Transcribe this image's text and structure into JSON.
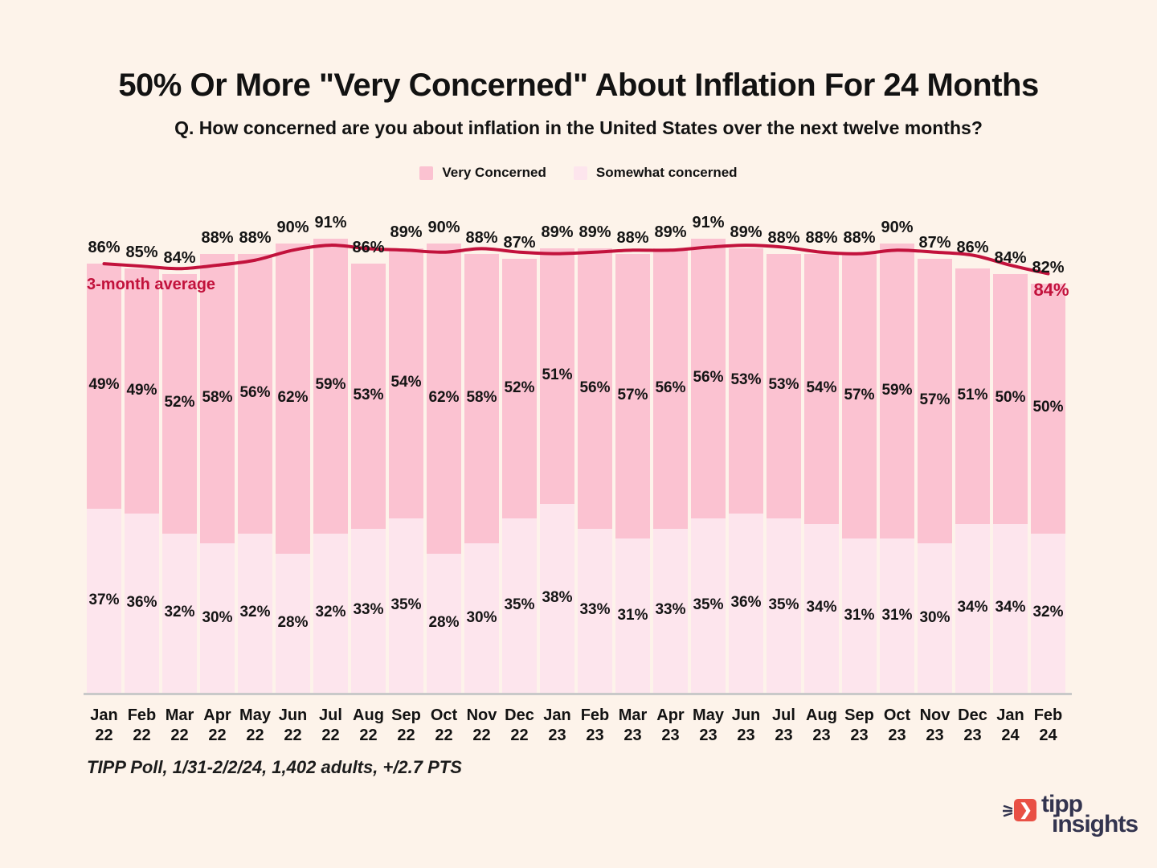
{
  "title": "50% Or More \"Very Concerned\" About Inflation For 24 Months",
  "subtitle": "Q. How concerned are you about inflation in the United States over the next twelve months?",
  "legend": [
    {
      "label": "Very Concerned",
      "color": "#fbc2d1"
    },
    {
      "label": "Somewhat concerned",
      "color": "#fde5ed"
    }
  ],
  "annotations": {
    "avg_line_label": "3-month average",
    "avg_final_label": "84%"
  },
  "footer": {
    "source": "TIPP Poll, 1/31-2/2/24, 1,402 adults, +/2.7 PTS"
  },
  "logo": {
    "word1": "tipp",
    "word2": "insights"
  },
  "colors": {
    "background": "#fdf3ea",
    "very_concerned": "#fbc2d1",
    "somewhat_concerned": "#fde5ed",
    "avg_line": "#c2123c",
    "axis": "#c9c9c9",
    "text": "#121212",
    "logo_red": "#e95045",
    "logo_navy": "#33344f"
  },
  "chart_data": {
    "type": "bar",
    "stacked": true,
    "grid": false,
    "legend_position": "top",
    "ylim": [
      0,
      100
    ],
    "categories": [
      "Jan 22",
      "Feb 22",
      "Mar 22",
      "Apr 22",
      "May 22",
      "Jun 22",
      "Jul 22",
      "Aug 22",
      "Sep 22",
      "Oct 22",
      "Nov 22",
      "Dec 22",
      "Jan 23",
      "Feb 23",
      "Mar 23",
      "Apr 23",
      "May 23",
      "Jun 23",
      "Jul 23",
      "Aug 23",
      "Sep 23",
      "Oct 23",
      "Nov 23",
      "Dec 23",
      "Jan 24",
      "Feb 24"
    ],
    "series": [
      {
        "name": "Very Concerned",
        "color": "#fbc2d1",
        "values": [
          49,
          49,
          52,
          58,
          56,
          62,
          59,
          53,
          54,
          62,
          58,
          52,
          51,
          56,
          57,
          56,
          56,
          53,
          53,
          54,
          57,
          59,
          57,
          51,
          50,
          50
        ]
      },
      {
        "name": "Somewhat concerned",
        "color": "#fde5ed",
        "values": [
          37,
          36,
          32,
          30,
          32,
          28,
          32,
          33,
          35,
          28,
          30,
          35,
          38,
          33,
          31,
          33,
          35,
          36,
          35,
          34,
          31,
          31,
          30,
          34,
          34,
          32
        ]
      }
    ],
    "totals": [
      86,
      85,
      84,
      88,
      88,
      90,
      91,
      86,
      89,
      90,
      88,
      87,
      89,
      89,
      88,
      89,
      91,
      89,
      88,
      88,
      88,
      90,
      87,
      86,
      84,
      82
    ],
    "line": {
      "name": "3-month average",
      "color": "#c2123c",
      "values": [
        86,
        85.5,
        85,
        85.7,
        86.7,
        88.7,
        89.7,
        89,
        88.7,
        88.3,
        89,
        88.3,
        88,
        88.3,
        88.7,
        88.7,
        89.3,
        89.7,
        89.3,
        88.3,
        88,
        88.7,
        88.3,
        87.7,
        85.7,
        84
      ],
      "final_value_label": "84%"
    }
  }
}
